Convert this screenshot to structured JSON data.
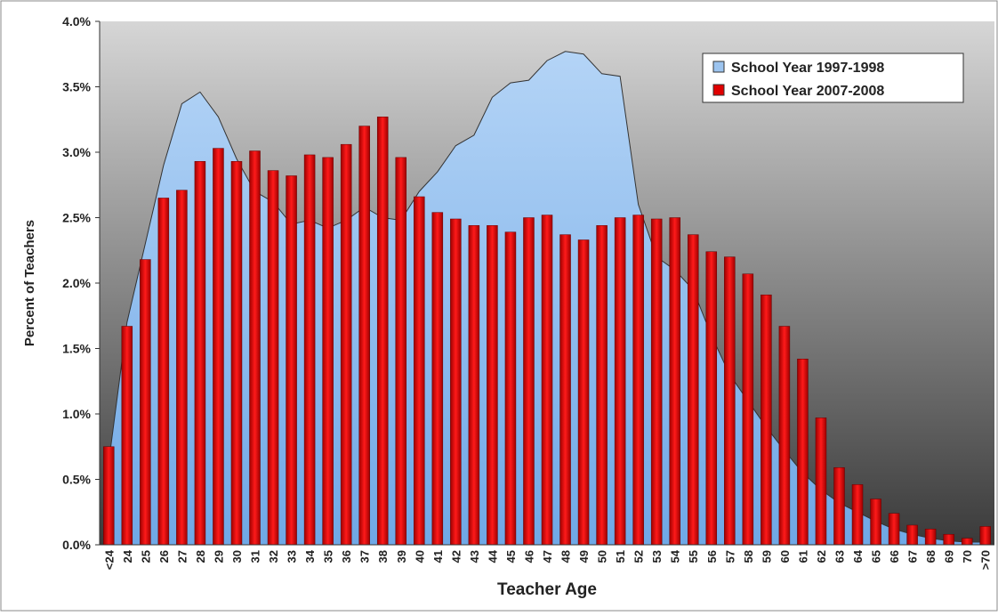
{
  "chart_data": {
    "type": "bar-area",
    "x_label": "Teacher Age",
    "y_label": "Percent of Teachers",
    "categories": [
      "<24",
      "24",
      "25",
      "26",
      "27",
      "28",
      "29",
      "30",
      "31",
      "32",
      "33",
      "34",
      "35",
      "36",
      "37",
      "38",
      "39",
      "40",
      "41",
      "42",
      "43",
      "44",
      "45",
      "46",
      "47",
      "48",
      "49",
      "50",
      "51",
      "52",
      "53",
      "54",
      "55",
      "56",
      "57",
      "58",
      "59",
      "60",
      "61",
      "62",
      "63",
      "64",
      "65",
      "66",
      "67",
      "68",
      "69",
      "70",
      ">70"
    ],
    "series": [
      {
        "name": "School Year 1997-1998",
        "type": "area",
        "color": "#9cc4ef",
        "values": [
          0.63,
          1.7,
          2.3,
          2.9,
          3.37,
          3.46,
          3.27,
          2.95,
          2.7,
          2.62,
          2.45,
          2.48,
          2.42,
          2.48,
          2.58,
          2.5,
          2.48,
          2.7,
          2.85,
          3.05,
          3.13,
          3.42,
          3.53,
          3.55,
          3.7,
          3.77,
          3.75,
          3.6,
          3.58,
          2.6,
          2.2,
          2.1,
          1.95,
          1.6,
          1.3,
          1.1,
          0.9,
          0.72,
          0.55,
          0.42,
          0.32,
          0.25,
          0.18,
          0.12,
          0.08,
          0.05,
          0.03,
          0.02,
          0.02
        ]
      },
      {
        "name": "School Year 2007-2008",
        "type": "bar",
        "color": "#e00000",
        "values": [
          0.75,
          1.67,
          2.18,
          2.65,
          2.71,
          2.93,
          3.03,
          2.93,
          3.01,
          2.86,
          2.82,
          2.98,
          2.96,
          3.06,
          3.2,
          3.27,
          2.96,
          2.66,
          2.54,
          2.49,
          2.44,
          2.44,
          2.39,
          2.5,
          2.52,
          2.37,
          2.33,
          2.44,
          2.5,
          2.52,
          2.49,
          2.5,
          2.37,
          2.24,
          2.2,
          2.07,
          1.91,
          1.67,
          1.42,
          0.97,
          0.59,
          0.46,
          0.35,
          0.24,
          0.15,
          0.12,
          0.08,
          0.05,
          0.14
        ]
      }
    ],
    "ylim": [
      0,
      4
    ],
    "yticks": [
      {
        "value": 0,
        "label": "0.0%"
      },
      {
        "value": 0.5,
        "label": "0.5%"
      },
      {
        "value": 1,
        "label": "1.0%"
      },
      {
        "value": 1.5,
        "label": "1.5%"
      },
      {
        "value": 2,
        "label": "2.0%"
      },
      {
        "value": 2.5,
        "label": "2.5%"
      },
      {
        "value": 3,
        "label": "3.0%"
      },
      {
        "value": 3.5,
        "label": "3.5%"
      },
      {
        "value": 4,
        "label": "4.0%"
      }
    ],
    "legend": "top-right"
  }
}
